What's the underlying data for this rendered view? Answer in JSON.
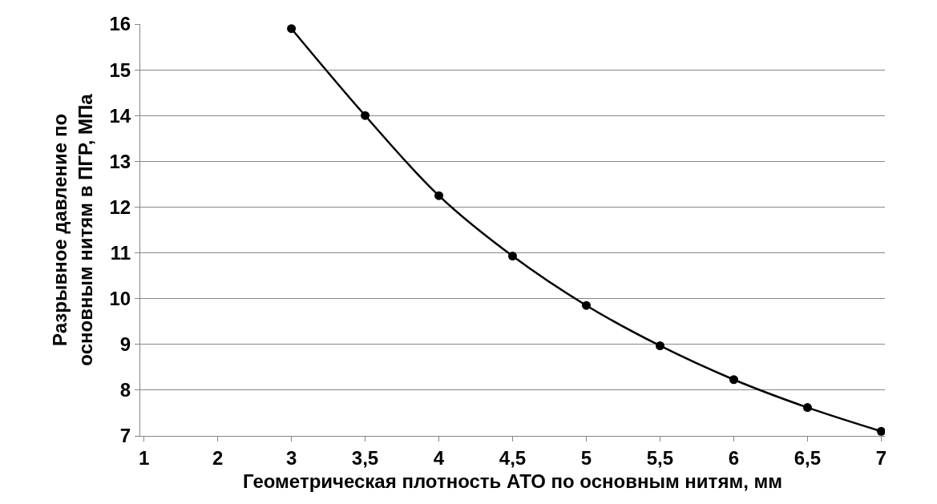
{
  "chart_data": {
    "type": "line",
    "xlabel": "Геометрическая плотность АТО по основным нитям, мм",
    "ylabel": "Разрывное давление по\nосновным нитям в ПГР, МПа",
    "categories": [
      "1",
      "2",
      "3",
      "3,5",
      "4",
      "4,5",
      "5",
      "5,5",
      "6",
      "6,5",
      "7"
    ],
    "series": [
      {
        "color": "#000000",
        "values": [
          null,
          null,
          15.9,
          14.0,
          12.25,
          10.93,
          9.85,
          8.97,
          8.23,
          7.62,
          7.1
        ]
      }
    ],
    "ylim": [
      7,
      16
    ],
    "yticks": [
      7,
      8,
      9,
      10,
      11,
      12,
      13,
      14,
      15,
      16
    ],
    "grid": "y",
    "marker": "circle",
    "line_style": "solid"
  }
}
